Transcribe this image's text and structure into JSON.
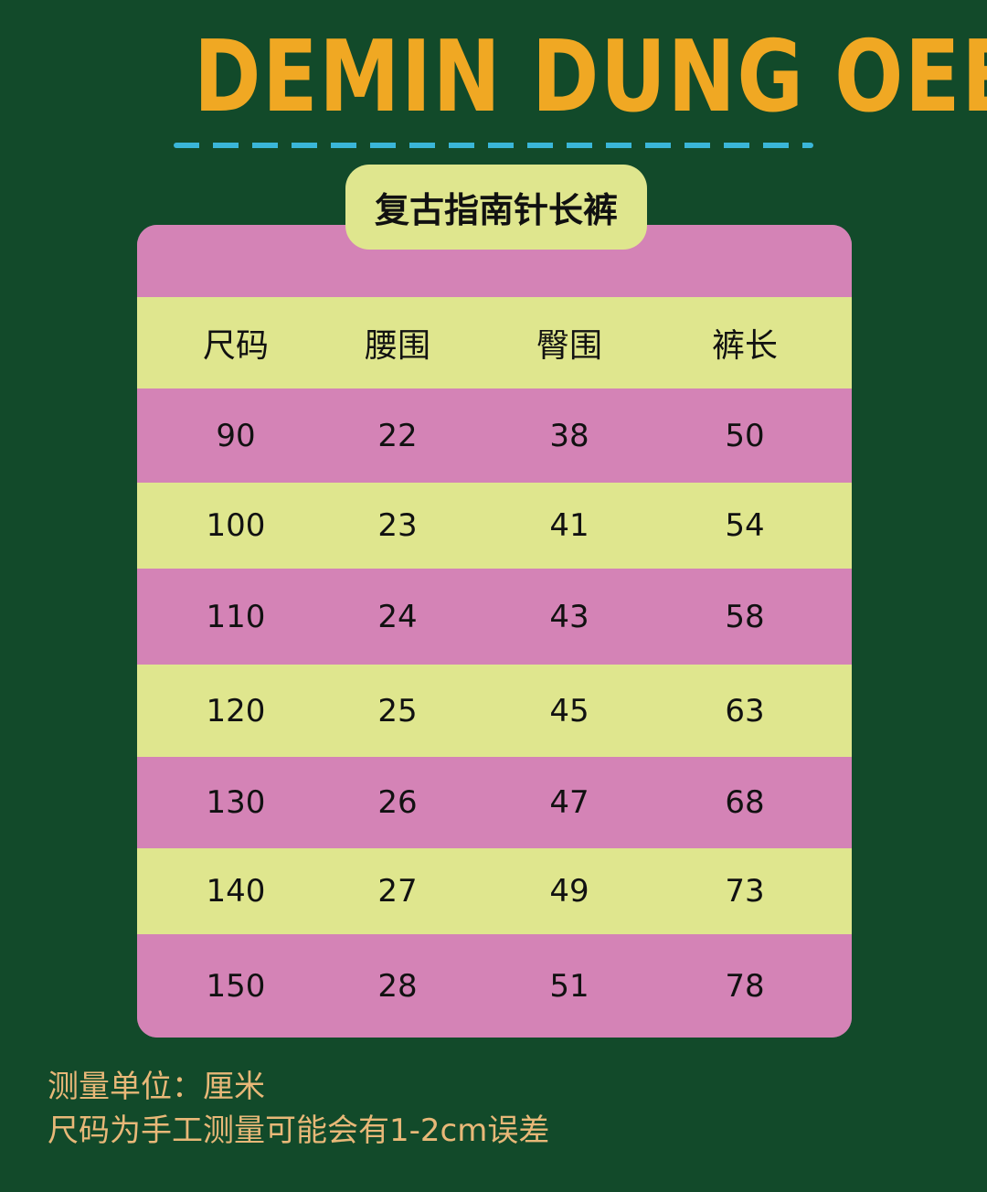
{
  "brand": "DEMIN DUNG OEE",
  "title": "复古指南针长裤",
  "table": {
    "headers": [
      "尺码",
      "腰围",
      "臀围",
      "裤长"
    ],
    "rows": [
      [
        "90",
        "22",
        "38",
        "50"
      ],
      [
        "100",
        "23",
        "41",
        "54"
      ],
      [
        "110",
        "24",
        "43",
        "58"
      ],
      [
        "120",
        "25",
        "45",
        "63"
      ],
      [
        "130",
        "26",
        "47",
        "68"
      ],
      [
        "140",
        "27",
        "49",
        "73"
      ],
      [
        "150",
        "28",
        "51",
        "78"
      ]
    ]
  },
  "notes": [
    "测量单位：厘米",
    "尺码为手工测量可能会有1-2cm误差"
  ],
  "colors": {
    "background": "#124a2a",
    "brand": "#f0a823",
    "pink": "#d483b6",
    "lime": "#dfe68e",
    "dash": "#3ab6d8",
    "note": "#e8b878"
  }
}
